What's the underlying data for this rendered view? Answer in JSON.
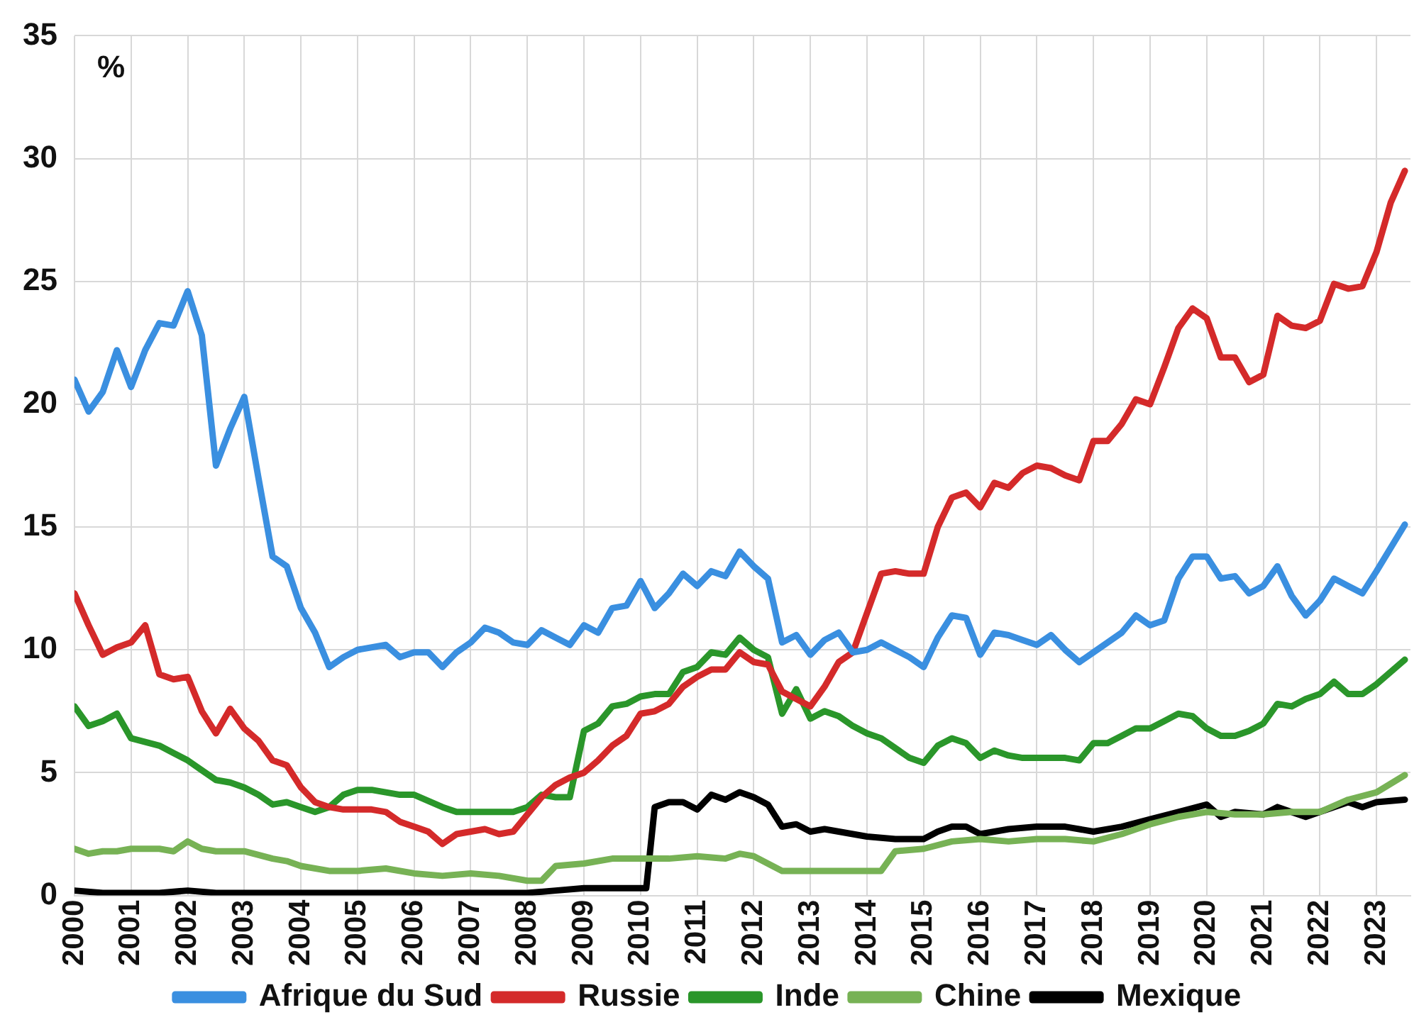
{
  "chart_data": {
    "type": "line",
    "ylabel": "%",
    "xlim": [
      2000,
      2023.6
    ],
    "ylim": [
      0,
      35
    ],
    "xticks": [
      2000,
      2001,
      2002,
      2003,
      2004,
      2005,
      2006,
      2007,
      2008,
      2009,
      2010,
      2011,
      2012,
      2013,
      2014,
      2015,
      2016,
      2017,
      2018,
      2019,
      2020,
      2021,
      2022,
      2023
    ],
    "yticks": [
      0,
      5,
      10,
      15,
      20,
      25,
      30,
      35
    ],
    "grid": true,
    "legend": "bottom",
    "marker": "none",
    "line_style": "solid",
    "series": [
      {
        "name": "Afrique du Sud",
        "color": "#3a8fe0",
        "x": [
          2000,
          2000.25,
          2000.5,
          2000.75,
          2001,
          2001.25,
          2001.5,
          2001.75,
          2002,
          2002.25,
          2002.5,
          2002.75,
          2003,
          2003.25,
          2003.5,
          2003.75,
          2004,
          2004.25,
          2004.5,
          2004.75,
          2005,
          2005.5,
          2005.75,
          2006,
          2006.25,
          2006.5,
          2006.75,
          2007,
          2007.25,
          2007.5,
          2007.75,
          2008,
          2008.25,
          2008.5,
          2008.75,
          2009,
          2009.25,
          2009.5,
          2009.75,
          2010,
          2010.25,
          2010.5,
          2010.75,
          2011,
          2011.25,
          2011.5,
          2011.75,
          2012,
          2012.25,
          2012.5,
          2012.75,
          2013,
          2013.25,
          2013.5,
          2013.75,
          2014,
          2014.25,
          2014.5,
          2014.75,
          2015,
          2015.25,
          2015.5,
          2015.75,
          2016,
          2016.25,
          2016.5,
          2016.75,
          2017,
          2017.25,
          2017.5,
          2017.75,
          2018,
          2018.5,
          2018.75,
          2019,
          2019.25,
          2019.5,
          2019.75,
          2020,
          2020.25,
          2020.5,
          2020.75,
          2021,
          2021.25,
          2021.5,
          2021.75,
          2022,
          2022.25,
          2022.5,
          2022.75,
          2023,
          2023.5
        ],
        "values": [
          21.0,
          19.7,
          20.5,
          22.2,
          20.7,
          22.2,
          23.3,
          23.2,
          24.6,
          22.8,
          17.5,
          19.0,
          20.3,
          17.0,
          13.8,
          13.4,
          11.7,
          10.7,
          9.3,
          9.7,
          10.0,
          10.2,
          9.7,
          9.9,
          9.9,
          9.3,
          9.9,
          10.3,
          10.9,
          10.7,
          10.3,
          10.2,
          10.8,
          10.5,
          10.2,
          11.0,
          10.7,
          11.7,
          11.8,
          12.8,
          11.7,
          12.3,
          13.1,
          12.6,
          13.2,
          13.0,
          14.0,
          13.4,
          12.9,
          10.3,
          10.6,
          9.8,
          10.4,
          10.7,
          9.9,
          10.0,
          10.3,
          10.0,
          9.7,
          9.3,
          10.5,
          11.4,
          11.3,
          9.8,
          10.7,
          10.6,
          10.4,
          10.2,
          10.6,
          10.0,
          9.5,
          9.9,
          10.7,
          11.4,
          11.0,
          11.2,
          12.9,
          13.8,
          13.8,
          12.9,
          13.0,
          12.3,
          12.6,
          13.4,
          12.2,
          11.4,
          12.0,
          12.9,
          12.6,
          12.3,
          13.2,
          15.1
        ]
      },
      {
        "name": "Russie",
        "color": "#d42a2a",
        "x": [
          2000,
          2000.25,
          2000.5,
          2000.75,
          2001,
          2001.25,
          2001.5,
          2001.75,
          2002,
          2002.25,
          2002.5,
          2002.75,
          2003,
          2003.25,
          2003.5,
          2003.75,
          2004,
          2004.25,
          2004.5,
          2004.75,
          2005,
          2005.25,
          2005.5,
          2005.75,
          2006,
          2006.25,
          2006.5,
          2006.75,
          2007,
          2007.25,
          2007.5,
          2007.75,
          2008,
          2008.25,
          2008.5,
          2008.75,
          2009,
          2009.25,
          2009.5,
          2009.75,
          2010,
          2010.25,
          2010.5,
          2010.75,
          2011,
          2011.25,
          2011.5,
          2011.75,
          2012,
          2012.25,
          2012.5,
          2012.75,
          2013,
          2013.25,
          2013.5,
          2013.75,
          2014,
          2014.25,
          2014.5,
          2014.75,
          2015,
          2015.25,
          2015.5,
          2015.75,
          2016,
          2016.25,
          2016.5,
          2016.75,
          2017,
          2017.25,
          2017.5,
          2017.75,
          2018,
          2018.25,
          2018.5,
          2018.75,
          2019,
          2019.25,
          2019.5,
          2019.75,
          2020,
          2020.25,
          2020.5,
          2020.75,
          2021,
          2021.25,
          2021.5,
          2021.75,
          2022,
          2022.25,
          2022.5,
          2022.75,
          2023,
          2023.25,
          2023.5
        ],
        "values": [
          12.3,
          11.0,
          9.8,
          10.1,
          10.3,
          11.0,
          9.0,
          8.8,
          8.9,
          7.5,
          6.6,
          7.6,
          6.8,
          6.3,
          5.5,
          5.3,
          4.4,
          3.8,
          3.6,
          3.5,
          3.5,
          3.5,
          3.4,
          3.0,
          2.8,
          2.6,
          2.1,
          2.5,
          2.6,
          2.7,
          2.5,
          2.6,
          3.3,
          4.0,
          4.5,
          4.8,
          5.0,
          5.5,
          6.1,
          6.5,
          7.4,
          7.5,
          7.8,
          8.5,
          8.9,
          9.2,
          9.2,
          9.9,
          9.5,
          9.4,
          8.3,
          8.0,
          7.7,
          8.5,
          9.5,
          9.9,
          11.5,
          13.1,
          13.2,
          13.1,
          13.1,
          15.0,
          16.2,
          16.4,
          15.8,
          16.8,
          16.6,
          17.2,
          17.5,
          17.4,
          17.1,
          16.9,
          18.5,
          18.5,
          19.2,
          20.2,
          20.0,
          21.5,
          23.1,
          23.9,
          23.5,
          21.9,
          21.9,
          20.9,
          21.2,
          23.6,
          23.2,
          23.1,
          23.4,
          24.9,
          24.7,
          24.8,
          26.2,
          28.2,
          29.5
        ]
      },
      {
        "name": "Inde",
        "color": "#2a962a",
        "x": [
          2000,
          2000.25,
          2000.5,
          2000.75,
          2001,
          2001.5,
          2001.75,
          2002,
          2002.25,
          2002.5,
          2002.75,
          2003,
          2003.25,
          2003.5,
          2003.75,
          2004,
          2004.25,
          2004.5,
          2004.75,
          2005,
          2005.25,
          2005.5,
          2005.75,
          2006,
          2006.5,
          2006.75,
          2007,
          2007.5,
          2007.75,
          2008,
          2008.25,
          2008.5,
          2008.75,
          2009,
          2009.25,
          2009.5,
          2009.75,
          2010,
          2010.25,
          2010.5,
          2010.75,
          2011,
          2011.25,
          2011.5,
          2011.75,
          2012,
          2012.25,
          2012.5,
          2012.75,
          2013,
          2013.25,
          2013.5,
          2013.75,
          2014,
          2014.25,
          2014.5,
          2014.75,
          2015,
          2015.25,
          2015.5,
          2015.75,
          2016,
          2016.25,
          2016.5,
          2016.75,
          2017,
          2017.5,
          2017.75,
          2018,
          2018.25,
          2018.5,
          2018.75,
          2019,
          2019.25,
          2019.5,
          2019.75,
          2020,
          2020.25,
          2020.5,
          2020.75,
          2021,
          2021.25,
          2021.5,
          2021.75,
          2022,
          2022.25,
          2022.5,
          2022.75,
          2023,
          2023.5
        ],
        "values": [
          7.7,
          6.9,
          7.1,
          7.4,
          6.4,
          6.1,
          5.8,
          5.5,
          5.1,
          4.7,
          4.6,
          4.4,
          4.1,
          3.7,
          3.8,
          3.6,
          3.4,
          3.6,
          4.1,
          4.3,
          4.3,
          4.2,
          4.1,
          4.1,
          3.6,
          3.4,
          3.4,
          3.4,
          3.4,
          3.6,
          4.1,
          4.0,
          4.0,
          6.7,
          7.0,
          7.7,
          7.8,
          8.1,
          8.2,
          8.2,
          9.1,
          9.3,
          9.9,
          9.8,
          10.5,
          10.0,
          9.7,
          7.4,
          8.4,
          7.2,
          7.5,
          7.3,
          6.9,
          6.6,
          6.4,
          6.0,
          5.6,
          5.4,
          6.1,
          6.4,
          6.2,
          5.6,
          5.9,
          5.7,
          5.6,
          5.6,
          5.6,
          5.5,
          6.2,
          6.2,
          6.5,
          6.8,
          6.8,
          7.1,
          7.4,
          7.3,
          6.8,
          6.5,
          6.5,
          6.7,
          7.0,
          7.8,
          7.7,
          8.0,
          8.2,
          8.7,
          8.2,
          8.2,
          8.6,
          9.6
        ]
      },
      {
        "name": "Chine",
        "color": "#77b255",
        "x": [
          2000,
          2000.25,
          2000.5,
          2000.75,
          2001,
          2001.5,
          2001.75,
          2002,
          2002.25,
          2002.5,
          2002.75,
          2003,
          2003.5,
          2003.75,
          2004,
          2004.5,
          2005,
          2005.5,
          2006,
          2006.5,
          2007,
          2007.5,
          2008,
          2008.25,
          2008.5,
          2009,
          2009.5,
          2010,
          2010.5,
          2011,
          2011.5,
          2011.75,
          2012,
          2012.5,
          2013,
          2013.5,
          2014,
          2014.25,
          2014.5,
          2015,
          2015.5,
          2016,
          2016.5,
          2017,
          2017.5,
          2018,
          2018.5,
          2019,
          2019.5,
          2020,
          2020.5,
          2021,
          2021.5,
          2022,
          2022.5,
          2023,
          2023.5
        ],
        "values": [
          1.9,
          1.7,
          1.8,
          1.8,
          1.9,
          1.9,
          1.8,
          2.2,
          1.9,
          1.8,
          1.8,
          1.8,
          1.5,
          1.4,
          1.2,
          1.0,
          1.0,
          1.1,
          0.9,
          0.8,
          0.9,
          0.8,
          0.6,
          0.6,
          1.2,
          1.3,
          1.5,
          1.5,
          1.5,
          1.6,
          1.5,
          1.7,
          1.6,
          1.0,
          1.0,
          1.0,
          1.0,
          1.0,
          1.8,
          1.9,
          2.2,
          2.3,
          2.2,
          2.3,
          2.3,
          2.2,
          2.5,
          2.9,
          3.2,
          3.4,
          3.3,
          3.3,
          3.4,
          3.4,
          3.9,
          4.2,
          4.9
        ]
      },
      {
        "name": "Mexique",
        "color": "#000000",
        "x": [
          2000,
          2000.5,
          2001,
          2001.5,
          2002,
          2002.5,
          2003,
          2004,
          2005,
          2006,
          2007,
          2008,
          2008.5,
          2009,
          2009.5,
          2010,
          2010.1,
          2010.25,
          2010.5,
          2010.75,
          2011,
          2011.25,
          2011.5,
          2011.75,
          2012,
          2012.25,
          2012.5,
          2012.75,
          2013,
          2013.25,
          2013.5,
          2014,
          2014.5,
          2015,
          2015.25,
          2015.5,
          2015.75,
          2016,
          2016.5,
          2017,
          2017.5,
          2018,
          2018.5,
          2019,
          2019.5,
          2020,
          2020.25,
          2020.5,
          2021,
          2021.25,
          2021.75,
          2022,
          2022.5,
          2022.75,
          2023,
          2023.5
        ],
        "values": [
          0.2,
          0.1,
          0.1,
          0.1,
          0.2,
          0.1,
          0.1,
          0.1,
          0.1,
          0.1,
          0.1,
          0.1,
          0.2,
          0.3,
          0.3,
          0.3,
          0.3,
          3.6,
          3.8,
          3.8,
          3.5,
          4.1,
          3.9,
          4.2,
          4.0,
          3.7,
          2.8,
          2.9,
          2.6,
          2.7,
          2.6,
          2.4,
          2.3,
          2.3,
          2.6,
          2.8,
          2.8,
          2.5,
          2.7,
          2.8,
          2.8,
          2.6,
          2.8,
          3.1,
          3.4,
          3.7,
          3.2,
          3.4,
          3.3,
          3.6,
          3.2,
          3.4,
          3.8,
          3.6,
          3.8,
          3.9
        ]
      }
    ]
  }
}
